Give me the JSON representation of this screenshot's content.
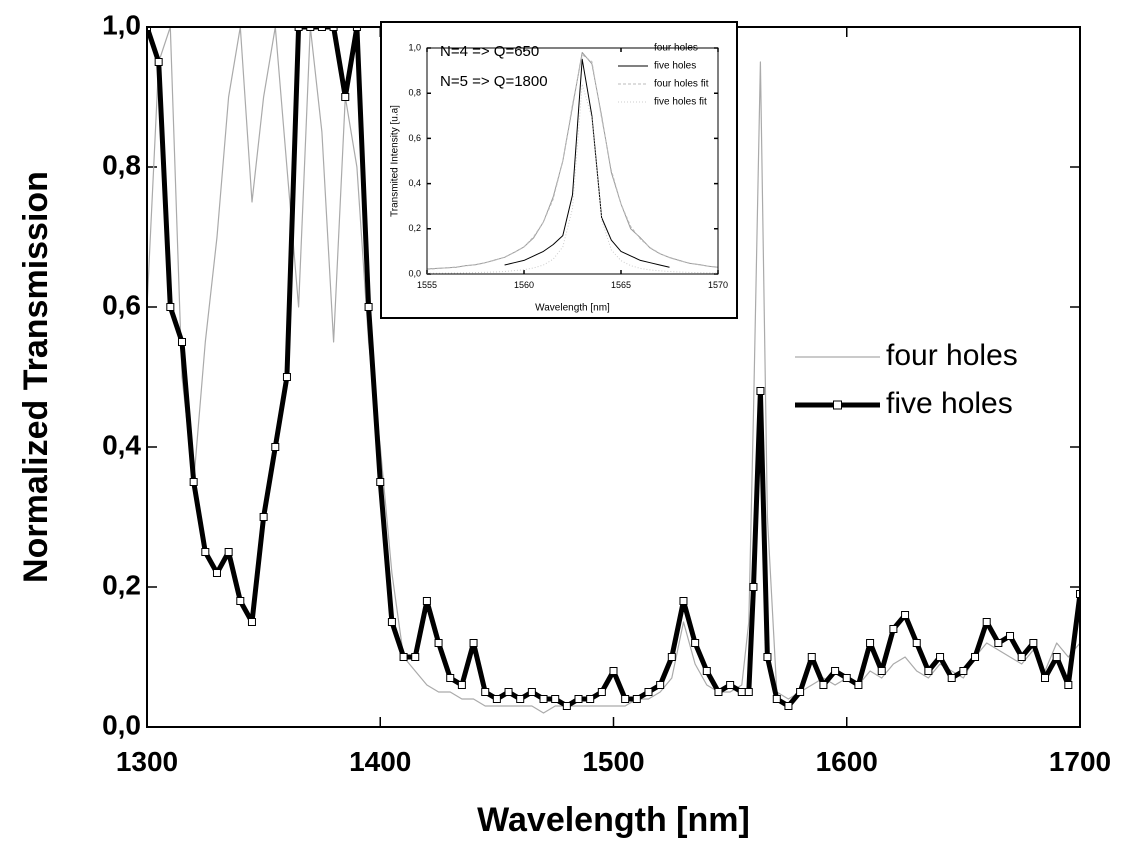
{
  "chart_data": [
    {
      "type": "line",
      "x_label": "Wavelength [nm]",
      "y_label": "Normalized Transmission",
      "x": [
        1300,
        1305,
        1310,
        1315,
        1320,
        1325,
        1330,
        1335,
        1340,
        1345,
        1350,
        1355,
        1360,
        1365,
        1370,
        1375,
        1380,
        1385,
        1390,
        1395,
        1400,
        1405,
        1410,
        1415,
        1420,
        1425,
        1430,
        1435,
        1440,
        1445,
        1450,
        1455,
        1460,
        1465,
        1470,
        1475,
        1480,
        1485,
        1490,
        1495,
        1500,
        1505,
        1510,
        1515,
        1520,
        1525,
        1530,
        1535,
        1540,
        1545,
        1550,
        1555,
        1558,
        1560,
        1563,
        1566,
        1570,
        1575,
        1580,
        1585,
        1590,
        1595,
        1600,
        1605,
        1610,
        1615,
        1620,
        1625,
        1630,
        1635,
        1640,
        1645,
        1650,
        1655,
        1660,
        1665,
        1670,
        1675,
        1680,
        1685,
        1690,
        1695,
        1700
      ],
      "series": [
        {
          "name": "four holes",
          "color": "#aaaaaa",
          "markers": false,
          "values": [
            0.6,
            0.95,
            1.0,
            0.5,
            0.35,
            0.55,
            0.7,
            0.9,
            1.0,
            0.75,
            0.9,
            1.0,
            0.8,
            0.6,
            1.0,
            0.85,
            0.55,
            0.9,
            0.8,
            0.55,
            0.4,
            0.22,
            0.1,
            0.08,
            0.06,
            0.05,
            0.05,
            0.04,
            0.04,
            0.03,
            0.03,
            0.03,
            0.03,
            0.03,
            0.02,
            0.03,
            0.03,
            0.03,
            0.03,
            0.03,
            0.03,
            0.03,
            0.04,
            0.04,
            0.05,
            0.07,
            0.15,
            0.09,
            0.06,
            0.05,
            0.05,
            0.06,
            0.15,
            0.45,
            0.95,
            0.3,
            0.05,
            0.04,
            0.05,
            0.06,
            0.07,
            0.06,
            0.07,
            0.06,
            0.08,
            0.07,
            0.09,
            0.1,
            0.08,
            0.07,
            0.09,
            0.08,
            0.07,
            0.1,
            0.12,
            0.11,
            0.1,
            0.09,
            0.11,
            0.08,
            0.12,
            0.1,
            0.12
          ]
        },
        {
          "name": "five holes",
          "color": "#000000",
          "markers": true,
          "values": [
            1.0,
            0.95,
            0.6,
            0.55,
            0.35,
            0.25,
            0.22,
            0.25,
            0.18,
            0.15,
            0.3,
            0.4,
            0.5,
            1.0,
            1.0,
            1.0,
            1.0,
            0.9,
            1.0,
            0.6,
            0.35,
            0.15,
            0.1,
            0.1,
            0.18,
            0.12,
            0.07,
            0.06,
            0.12,
            0.05,
            0.04,
            0.05,
            0.04,
            0.05,
            0.04,
            0.04,
            0.03,
            0.04,
            0.04,
            0.05,
            0.08,
            0.04,
            0.04,
            0.05,
            0.06,
            0.1,
            0.18,
            0.12,
            0.08,
            0.05,
            0.06,
            0.05,
            0.05,
            0.2,
            0.48,
            0.1,
            0.04,
            0.03,
            0.05,
            0.1,
            0.06,
            0.08,
            0.07,
            0.06,
            0.12,
            0.08,
            0.14,
            0.16,
            0.12,
            0.08,
            0.1,
            0.07,
            0.08,
            0.1,
            0.15,
            0.12,
            0.13,
            0.1,
            0.12,
            0.07,
            0.1,
            0.06,
            0.19
          ]
        }
      ],
      "xlim": [
        1300,
        1700
      ],
      "xticks": [
        1300,
        1400,
        1500,
        1600,
        1700
      ],
      "ylim": [
        0,
        1.0
      ],
      "yticks": [
        {
          "value": 0,
          "label": "0,0"
        },
        {
          "value": 0.2,
          "label": "0,2"
        },
        {
          "value": 0.4,
          "label": "0,4"
        },
        {
          "value": 0.6,
          "label": "0,6"
        },
        {
          "value": 0.8,
          "label": "0,8"
        },
        {
          "value": 1.0,
          "label": "1,0"
        }
      ],
      "legend": "right"
    },
    {
      "type": "line",
      "x_label": "Wavelength [nm]",
      "y_label": "Transmited Intensity [u.a]",
      "annotations": [
        "N=4 => Q=650",
        "N=5 => Q=1800"
      ],
      "x": [
        1555,
        1555.5,
        1556,
        1556.5,
        1557,
        1557.5,
        1558,
        1558.5,
        1559,
        1559.5,
        1560,
        1560.5,
        1561,
        1561.5,
        1562,
        1562.5,
        1563,
        1563.5,
        1564,
        1564.5,
        1565,
        1565.5,
        1566,
        1566.5,
        1567,
        1567.5,
        1568,
        1568.5,
        1569,
        1569.5,
        1570
      ],
      "series": [
        {
          "name": "four holes",
          "color": "#999999",
          "dash": "none",
          "values": [
            0.022,
            0.025,
            0.027,
            0.03,
            0.037,
            0.041,
            0.05,
            0.062,
            0.074,
            0.096,
            0.12,
            0.16,
            0.23,
            0.34,
            0.5,
            0.74,
            0.98,
            0.93,
            0.7,
            0.45,
            0.31,
            0.2,
            0.16,
            0.115,
            0.09,
            0.073,
            0.06,
            0.048,
            0.042,
            0.034,
            0.03
          ]
        },
        {
          "name": "five holes",
          "color": "#000000",
          "dash": "none",
          "values": [
            null,
            null,
            null,
            null,
            null,
            null,
            null,
            null,
            0.04,
            0.05,
            0.06,
            0.08,
            0.1,
            0.13,
            0.17,
            0.35,
            0.95,
            0.7,
            0.25,
            0.15,
            0.1,
            0.08,
            0.06,
            0.05,
            0.04,
            0.03,
            null,
            null,
            null,
            null,
            null
          ]
        },
        {
          "name": "four holes fit",
          "color": "#bbbbbb",
          "dash": "3,2",
          "values": [
            0.021,
            0.024,
            0.027,
            0.031,
            0.036,
            0.042,
            0.05,
            0.061,
            0.075,
            0.095,
            0.12,
            0.165,
            0.23,
            0.33,
            0.5,
            0.75,
            0.97,
            0.94,
            0.69,
            0.46,
            0.31,
            0.21,
            0.155,
            0.117,
            0.091,
            0.072,
            0.059,
            0.049,
            0.041,
            0.035,
            0.03
          ]
        },
        {
          "name": "five holes fit",
          "color": "#cccccc",
          "dash": "1,2",
          "values": [
            0.003,
            0.003,
            0.004,
            0.0045,
            0.005,
            0.006,
            0.0074,
            0.009,
            0.011,
            0.015,
            0.019,
            0.027,
            0.04,
            0.065,
            0.12,
            0.29,
            0.84,
            0.69,
            0.24,
            0.107,
            0.059,
            0.037,
            0.025,
            0.018,
            0.014,
            0.011,
            0.0087,
            0.007,
            0.006,
            0.005,
            0.0044
          ]
        }
      ],
      "xlim": [
        1555,
        1570
      ],
      "xticks": [
        1555,
        1560,
        1565,
        1570
      ],
      "ylim": [
        0,
        1.0
      ],
      "yticks": [
        {
          "value": 0,
          "label": "0,0"
        },
        {
          "value": 0.2,
          "label": "0,2"
        },
        {
          "value": 0.4,
          "label": "0,4"
        },
        {
          "value": 0.6,
          "label": "0,6"
        },
        {
          "value": 0.8,
          "label": "0,8"
        },
        {
          "value": 1.0,
          "label": "1,0"
        }
      ],
      "legend": "top-right"
    }
  ]
}
